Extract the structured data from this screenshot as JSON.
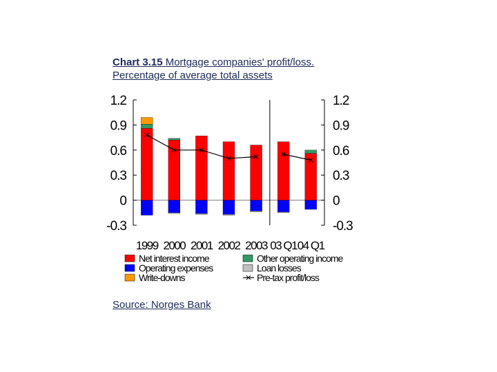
{
  "header": {
    "title_bold": "Chart 3.15",
    "title_rest": " Mortgage companies' profit/loss. Percentage of average total assets"
  },
  "footer": {
    "source": "Source: Norges Bank"
  },
  "colors": {
    "net_interest": "#ff0000",
    "operating_expenses": "#0000ff",
    "write_downs": "#ff9900",
    "other_operating": "#339966",
    "loan_losses": "#c0c0c0",
    "pretax": "#000000"
  },
  "chart_data": {
    "type": "bar",
    "stacked": true,
    "categories": [
      "1999",
      "2000",
      "2001",
      "2002",
      "2003",
      "03 Q1",
      "04 Q1"
    ],
    "ylim": [
      -0.3,
      1.2
    ],
    "yticks": [
      "1.2",
      "0.9",
      "0.6",
      "0.3",
      "0",
      "-0.3"
    ],
    "y2ticks": [
      "1.2",
      "0.9",
      "0.6",
      "0.3",
      "0",
      "-0.3"
    ],
    "divider_after_category": 4,
    "series": [
      {
        "name": "Net interest income",
        "kind": "bar",
        "color": "#ff0000",
        "values": [
          0.86,
          0.72,
          0.77,
          0.7,
          0.66,
          0.7,
          0.56
        ]
      },
      {
        "name": "Other operating income",
        "kind": "bar",
        "color": "#339966",
        "values": [
          0.05,
          0.02,
          0.0,
          0.0,
          0.0,
          0.0,
          0.04
        ]
      },
      {
        "name": "Write-downs",
        "kind": "bar",
        "color": "#ff9900",
        "values": [
          0.08,
          0.0,
          0.0,
          0.0,
          0.0,
          0.0,
          0.0
        ]
      },
      {
        "name": "Operating expenses",
        "kind": "bar",
        "color": "#0000ff",
        "values": [
          -0.18,
          -0.15,
          -0.16,
          -0.17,
          -0.13,
          -0.14,
          -0.11
        ]
      },
      {
        "name": "Loan losses",
        "kind": "bar",
        "color": "#c0c0c0",
        "values": [
          0.0,
          -0.01,
          -0.01,
          -0.01,
          -0.01,
          -0.01,
          0.0
        ]
      },
      {
        "name": "Pre-tax profit/loss",
        "kind": "line",
        "color": "#000000",
        "values": [
          0.78,
          0.6,
          0.6,
          0.5,
          0.52,
          0.55,
          0.48
        ]
      }
    ],
    "legend": {
      "placement": "bottom",
      "items": [
        {
          "label": "Net interest income",
          "color": "#ff0000",
          "type": "box"
        },
        {
          "label": "Other operating income",
          "color": "#339966",
          "type": "box"
        },
        {
          "label": "Operating expenses",
          "color": "#0000ff",
          "type": "box"
        },
        {
          "label": "Loan losses",
          "color": "#c0c0c0",
          "type": "box"
        },
        {
          "label": "Write-downs",
          "color": "#ff9900",
          "type": "box"
        },
        {
          "label": "Pre-tax profit/loss",
          "color": "#000000",
          "type": "line"
        }
      ]
    }
  }
}
